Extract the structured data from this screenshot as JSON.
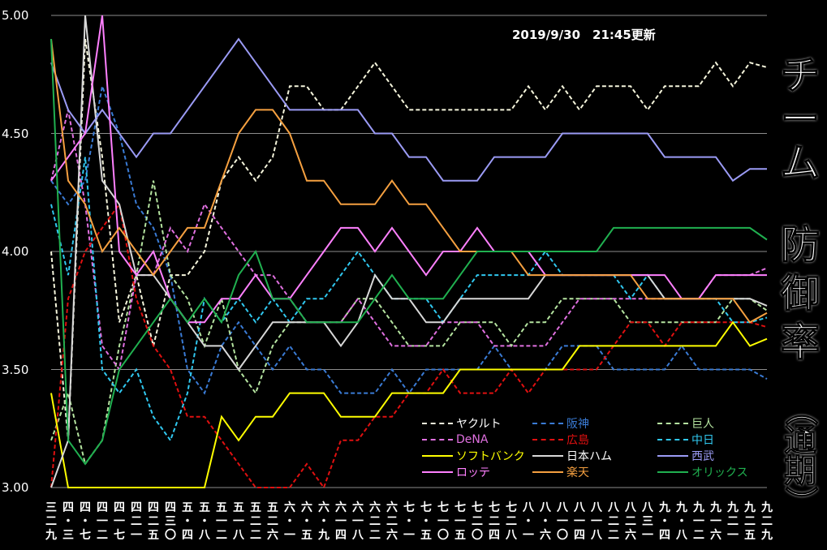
{
  "updated": "2019/9/30　21:45更新",
  "title": {
    "line1": [
      "チ",
      "ー",
      "ム"
    ],
    "line2": [
      "防",
      "御",
      "率"
    ],
    "line3": [
      "（",
      "通",
      "期",
      "）"
    ]
  },
  "colors": {
    "background": "#000000",
    "grid": "#8c8c8c",
    "text": "#ffffff"
  },
  "chart_data": {
    "type": "line",
    "ylim": [
      3.0,
      5.0
    ],
    "y_ticks": [
      "5.00",
      "4.50",
      "4.00",
      "3.50",
      "3.00"
    ],
    "x_labels": [
      [
        "三",
        "二",
        "九"
      ],
      [
        "四",
        "・",
        "三"
      ],
      [
        "四",
        "・",
        "七"
      ],
      [
        "四",
        "一",
        "二"
      ],
      [
        "四",
        "一",
        "七"
      ],
      [
        "四",
        "二",
        "一"
      ],
      [
        "四",
        "二",
        "五"
      ],
      [
        "四",
        "三",
        "〇"
      ],
      [
        "五",
        "・",
        "四"
      ],
      [
        "五",
        "・",
        "八"
      ],
      [
        "五",
        "一",
        "二"
      ],
      [
        "五",
        "一",
        "八"
      ],
      [
        "五",
        "二",
        "二"
      ],
      [
        "五",
        "二",
        "六"
      ],
      [
        "六",
        "・",
        "一"
      ],
      [
        "六",
        "・",
        "五"
      ],
      [
        "六",
        "・",
        "九"
      ],
      [
        "六",
        "一",
        "四"
      ],
      [
        "六",
        "一",
        "八"
      ],
      [
        "六",
        "二",
        "二"
      ],
      [
        "六",
        "二",
        "六"
      ],
      [
        "七",
        "・",
        "一"
      ],
      [
        "七",
        "・",
        "五"
      ],
      [
        "七",
        "一",
        "〇"
      ],
      [
        "七",
        "一",
        "五"
      ],
      [
        "七",
        "二",
        "〇"
      ],
      [
        "七",
        "二",
        "四"
      ],
      [
        "七",
        "二",
        "八"
      ],
      [
        "八",
        "・",
        "一"
      ],
      [
        "八",
        "・",
        "六"
      ],
      [
        "八",
        "一",
        "〇"
      ],
      [
        "八",
        "一",
        "四"
      ],
      [
        "八",
        "一",
        "八"
      ],
      [
        "八",
        "二",
        "二"
      ],
      [
        "八",
        "二",
        "六"
      ],
      [
        "八",
        "三",
        "一"
      ],
      [
        "九",
        "・",
        "四"
      ],
      [
        "九",
        "・",
        "八"
      ],
      [
        "九",
        "一",
        "二"
      ],
      [
        "九",
        "一",
        "六"
      ],
      [
        "九",
        "二",
        "一"
      ],
      [
        "九",
        "二",
        "五"
      ],
      [
        "九",
        "二",
        "九"
      ]
    ],
    "series": [
      {
        "name": "ヤクルト",
        "color": "#f5f5dc",
        "dash": true,
        "values": [
          4.0,
          3.2,
          4.9,
          4.4,
          3.7,
          3.9,
          3.6,
          3.9,
          3.9,
          4.0,
          4.3,
          4.4,
          4.3,
          4.4,
          4.7,
          4.7,
          4.6,
          4.6,
          4.7,
          4.8,
          4.7,
          4.6,
          4.6,
          4.6,
          4.6,
          4.6,
          4.6,
          4.6,
          4.7,
          4.6,
          4.7,
          4.6,
          4.7,
          4.7,
          4.7,
          4.6,
          4.7,
          4.7,
          4.7,
          4.8,
          4.7,
          4.8,
          4.78
        ]
      },
      {
        "name": "阪神",
        "color": "#3a7bd5",
        "dash": true,
        "values": [
          4.3,
          4.2,
          4.3,
          4.7,
          4.5,
          4.2,
          4.1,
          3.9,
          3.5,
          3.4,
          3.6,
          3.7,
          3.6,
          3.5,
          3.6,
          3.5,
          3.5,
          3.4,
          3.4,
          3.4,
          3.5,
          3.4,
          3.5,
          3.5,
          3.5,
          3.5,
          3.6,
          3.5,
          3.5,
          3.5,
          3.6,
          3.6,
          3.6,
          3.5,
          3.5,
          3.5,
          3.5,
          3.6,
          3.5,
          3.5,
          3.5,
          3.5,
          3.46
        ]
      },
      {
        "name": "巨人",
        "color": "#b5e4a0",
        "dash": true,
        "values": [
          3.2,
          3.4,
          3.1,
          3.2,
          3.6,
          3.9,
          4.3,
          3.9,
          3.8,
          3.6,
          3.8,
          3.5,
          3.4,
          3.6,
          3.7,
          3.7,
          3.7,
          3.7,
          3.8,
          3.8,
          3.7,
          3.6,
          3.6,
          3.6,
          3.7,
          3.7,
          3.7,
          3.6,
          3.7,
          3.7,
          3.8,
          3.8,
          3.8,
          3.8,
          3.7,
          3.7,
          3.7,
          3.7,
          3.7,
          3.7,
          3.8,
          3.8,
          3.75
        ]
      },
      {
        "name": "DeNA",
        "color": "#e070e0",
        "dash": true,
        "values": [
          4.3,
          4.6,
          4.2,
          3.6,
          3.5,
          3.9,
          3.9,
          4.1,
          4.0,
          4.2,
          4.1,
          4.0,
          3.9,
          3.9,
          3.8,
          3.7,
          3.7,
          3.7,
          3.8,
          3.7,
          3.6,
          3.6,
          3.6,
          3.7,
          3.7,
          3.7,
          3.6,
          3.6,
          3.6,
          3.6,
          3.7,
          3.8,
          3.8,
          3.8,
          3.8,
          3.8,
          3.8,
          3.8,
          3.8,
          3.9,
          3.9,
          3.9,
          3.93
        ]
      },
      {
        "name": "広島",
        "color": "#e01010",
        "dash": true,
        "values": [
          3.0,
          3.8,
          4.0,
          4.1,
          4.2,
          3.8,
          3.6,
          3.5,
          3.3,
          3.3,
          3.2,
          3.1,
          3.0,
          3.0,
          3.0,
          3.1,
          3.0,
          3.2,
          3.2,
          3.3,
          3.3,
          3.4,
          3.4,
          3.5,
          3.4,
          3.4,
          3.4,
          3.5,
          3.4,
          3.5,
          3.5,
          3.5,
          3.5,
          3.6,
          3.7,
          3.7,
          3.6,
          3.7,
          3.7,
          3.7,
          3.7,
          3.7,
          3.68
        ]
      },
      {
        "name": "中日",
        "color": "#30c8f0",
        "dash": true,
        "values": [
          4.2,
          3.9,
          4.4,
          3.5,
          3.4,
          3.5,
          3.3,
          3.2,
          3.4,
          3.8,
          3.7,
          3.8,
          3.7,
          3.8,
          3.7,
          3.8,
          3.8,
          3.9,
          4.0,
          3.9,
          3.8,
          3.8,
          3.8,
          3.7,
          3.8,
          3.9,
          3.9,
          3.9,
          3.9,
          4.0,
          3.9,
          3.9,
          3.9,
          3.9,
          3.8,
          3.9,
          3.8,
          3.8,
          3.8,
          3.8,
          3.7,
          3.7,
          3.72
        ]
      },
      {
        "name": "ソフトバンク",
        "color": "#ffff00",
        "dash": false,
        "values": [
          3.4,
          3.0,
          3.0,
          3.0,
          3.0,
          3.0,
          3.0,
          3.0,
          3.0,
          3.0,
          3.3,
          3.2,
          3.3,
          3.3,
          3.4,
          3.4,
          3.4,
          3.3,
          3.3,
          3.3,
          3.4,
          3.4,
          3.4,
          3.4,
          3.5,
          3.5,
          3.5,
          3.5,
          3.5,
          3.5,
          3.5,
          3.6,
          3.6,
          3.6,
          3.6,
          3.6,
          3.6,
          3.6,
          3.6,
          3.6,
          3.7,
          3.6,
          3.63
        ]
      },
      {
        "name": "日本ハム",
        "color": "#d8d8d8",
        "dash": false,
        "values": [
          3.0,
          3.2,
          5.0,
          4.3,
          4.2,
          3.9,
          3.9,
          3.8,
          3.7,
          3.6,
          3.6,
          3.5,
          3.6,
          3.7,
          3.7,
          3.7,
          3.7,
          3.6,
          3.7,
          3.9,
          3.8,
          3.8,
          3.7,
          3.7,
          3.8,
          3.8,
          3.8,
          3.8,
          3.8,
          3.9,
          3.9,
          3.9,
          3.9,
          3.9,
          3.9,
          3.9,
          3.8,
          3.8,
          3.8,
          3.8,
          3.8,
          3.8,
          3.77
        ]
      },
      {
        "name": "西武",
        "color": "#9b9bf5",
        "dash": false,
        "values": [
          4.8,
          4.6,
          4.5,
          4.6,
          4.5,
          4.4,
          4.5,
          4.5,
          4.6,
          4.7,
          4.8,
          4.9,
          4.8,
          4.7,
          4.6,
          4.6,
          4.6,
          4.6,
          4.6,
          4.5,
          4.5,
          4.4,
          4.4,
          4.3,
          4.3,
          4.3,
          4.4,
          4.4,
          4.4,
          4.4,
          4.5,
          4.5,
          4.5,
          4.5,
          4.5,
          4.5,
          4.4,
          4.4,
          4.4,
          4.4,
          4.3,
          4.35,
          4.35
        ]
      },
      {
        "name": "ロッテ",
        "color": "#ff80ff",
        "dash": false,
        "values": [
          4.3,
          4.4,
          4.5,
          5.0,
          4.0,
          3.9,
          4.0,
          3.8,
          3.7,
          3.7,
          3.8,
          3.8,
          3.9,
          3.8,
          3.8,
          3.9,
          4.0,
          4.1,
          4.1,
          4.0,
          4.1,
          4.0,
          3.9,
          4.0,
          4.0,
          4.1,
          4.0,
          4.0,
          4.0,
          3.9,
          3.9,
          3.9,
          3.9,
          3.9,
          3.9,
          3.9,
          3.9,
          3.8,
          3.8,
          3.9,
          3.9,
          3.9,
          3.9
        ]
      },
      {
        "name": "楽天",
        "color": "#f5a040",
        "dash": false,
        "values": [
          4.9,
          4.3,
          4.2,
          4.0,
          4.1,
          4.0,
          3.9,
          4.0,
          4.1,
          4.1,
          4.3,
          4.5,
          4.6,
          4.6,
          4.5,
          4.3,
          4.3,
          4.2,
          4.2,
          4.2,
          4.3,
          4.2,
          4.2,
          4.1,
          4.0,
          4.0,
          4.0,
          4.0,
          3.9,
          3.9,
          3.9,
          3.9,
          3.9,
          3.9,
          3.9,
          3.8,
          3.8,
          3.8,
          3.8,
          3.8,
          3.8,
          3.7,
          3.74
        ]
      },
      {
        "name": "オリックス",
        "color": "#20b050",
        "dash": false,
        "values": [
          4.9,
          3.2,
          3.1,
          3.2,
          3.5,
          3.6,
          3.7,
          3.8,
          3.7,
          3.8,
          3.7,
          3.9,
          4.0,
          3.8,
          3.8,
          3.7,
          3.7,
          3.7,
          3.7,
          3.8,
          3.9,
          3.8,
          3.8,
          3.8,
          3.9,
          4.0,
          4.0,
          4.0,
          4.0,
          4.0,
          4.0,
          4.0,
          4.0,
          4.1,
          4.1,
          4.1,
          4.1,
          4.1,
          4.1,
          4.1,
          4.1,
          4.1,
          4.05
        ]
      }
    ]
  }
}
